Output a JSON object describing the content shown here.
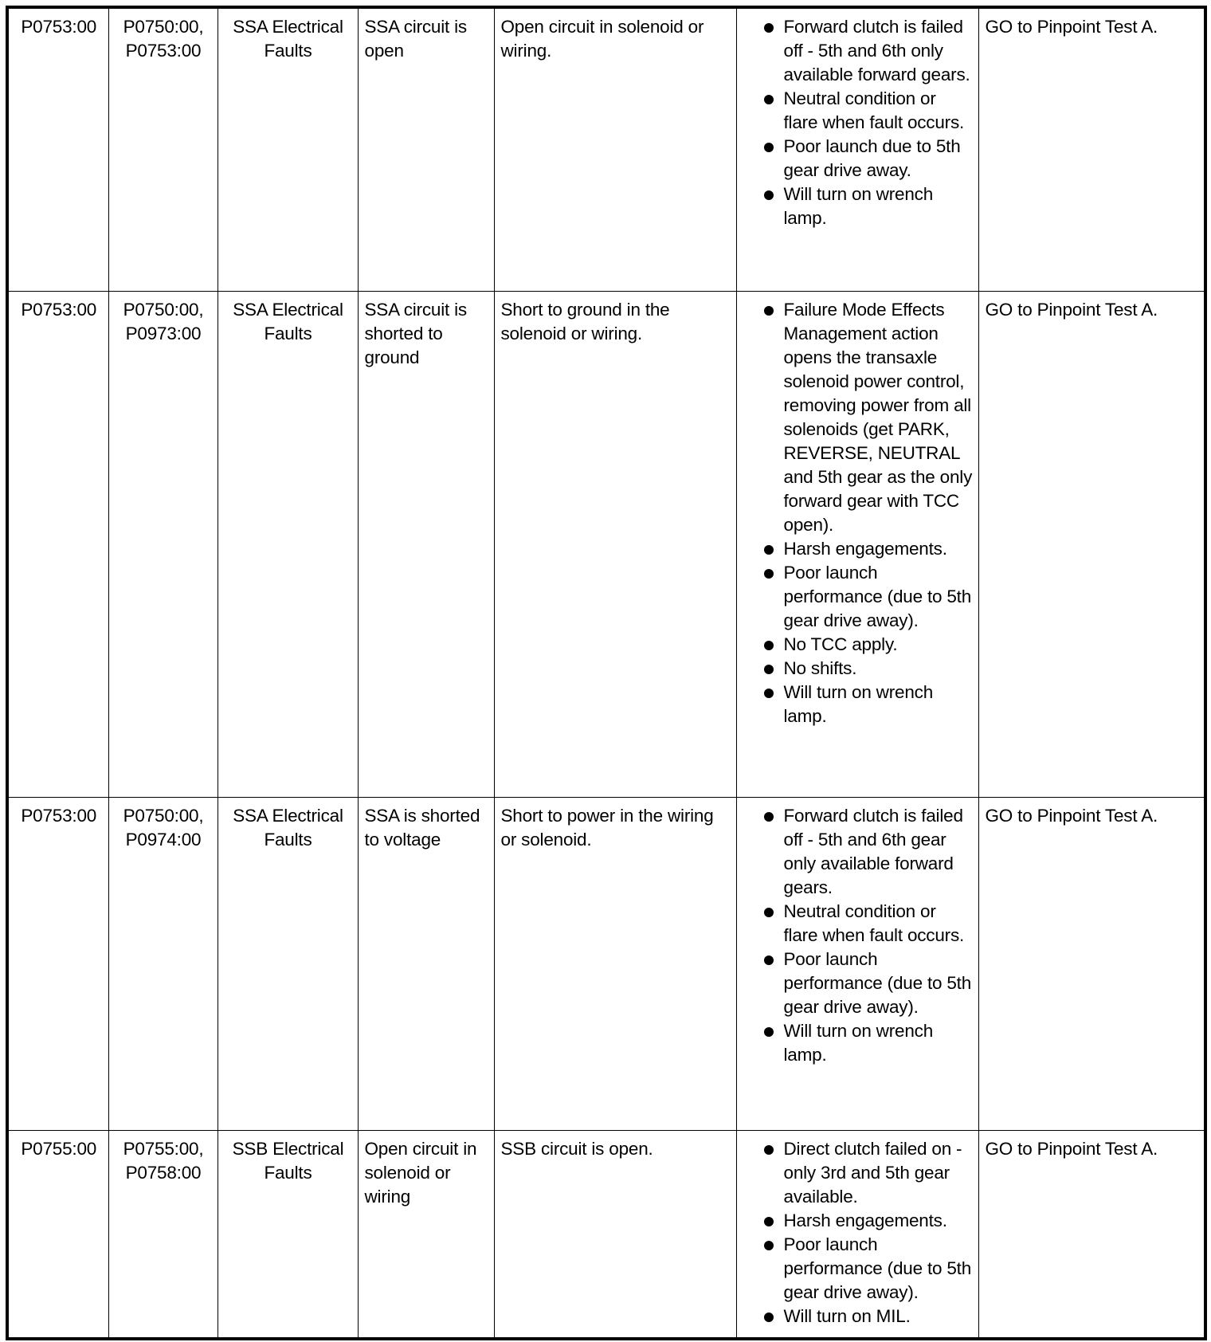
{
  "rows": [
    {
      "code": "P0753:00",
      "related": [
        "P0750:00,",
        "P0753:00"
      ],
      "category": "SSA Electrical Faults",
      "condition": "SSA circuit is open",
      "cause": "Open circuit in solenoid or wiring.",
      "symptoms": [
        "Forward clutch is failed off - 5th and 6th only available forward gears.",
        "Neutral condition or flare when fault occurs.",
        "Poor launch due to 5th gear drive away.",
        "Will turn on wrench lamp."
      ],
      "action": "GO to Pinpoint Test A."
    },
    {
      "code": "P0753:00",
      "related": [
        "P0750:00,",
        "P0973:00"
      ],
      "category": "SSA Electrical Faults",
      "condition": "SSA circuit is shorted to ground",
      "cause": "Short to ground in the solenoid or wiring.",
      "symptoms": [
        "Failure Mode Effects Management action opens the transaxle solenoid power control, removing power from all solenoids (get PARK, REVERSE, NEUTRAL and 5th gear as the only forward gear with TCC open).",
        "Harsh engagements.",
        "Poor launch performance (due to 5th gear drive away).",
        "No TCC apply.",
        "No shifts.",
        "Will turn on wrench lamp."
      ],
      "action": "GO to Pinpoint Test A."
    },
    {
      "code": "P0753:00",
      "related": [
        "P0750:00,",
        "P0974:00"
      ],
      "category": "SSA Electrical Faults",
      "condition": "SSA is shorted to voltage",
      "cause": "Short to power in the wiring or solenoid.",
      "symptoms": [
        "Forward clutch is failed off - 5th and 6th gear only available forward gears.",
        "Neutral condition or flare when fault occurs.",
        "Poor launch performance (due to 5th gear drive away).",
        "Will turn on wrench lamp."
      ],
      "action": "GO to Pinpoint Test A."
    },
    {
      "code": "P0755:00",
      "related": [
        "P0755:00,",
        "P0758:00"
      ],
      "category": "SSB Electrical Faults",
      "condition": "Open circuit in solenoid or wiring",
      "cause": "SSB circuit is open.",
      "symptoms": [
        "Direct clutch failed on - only 3rd and 5th gear available.",
        "Harsh engagements.",
        "Poor launch performance (due to 5th gear drive away).",
        "Will turn on MIL."
      ],
      "action": "GO to Pinpoint Test A."
    }
  ]
}
